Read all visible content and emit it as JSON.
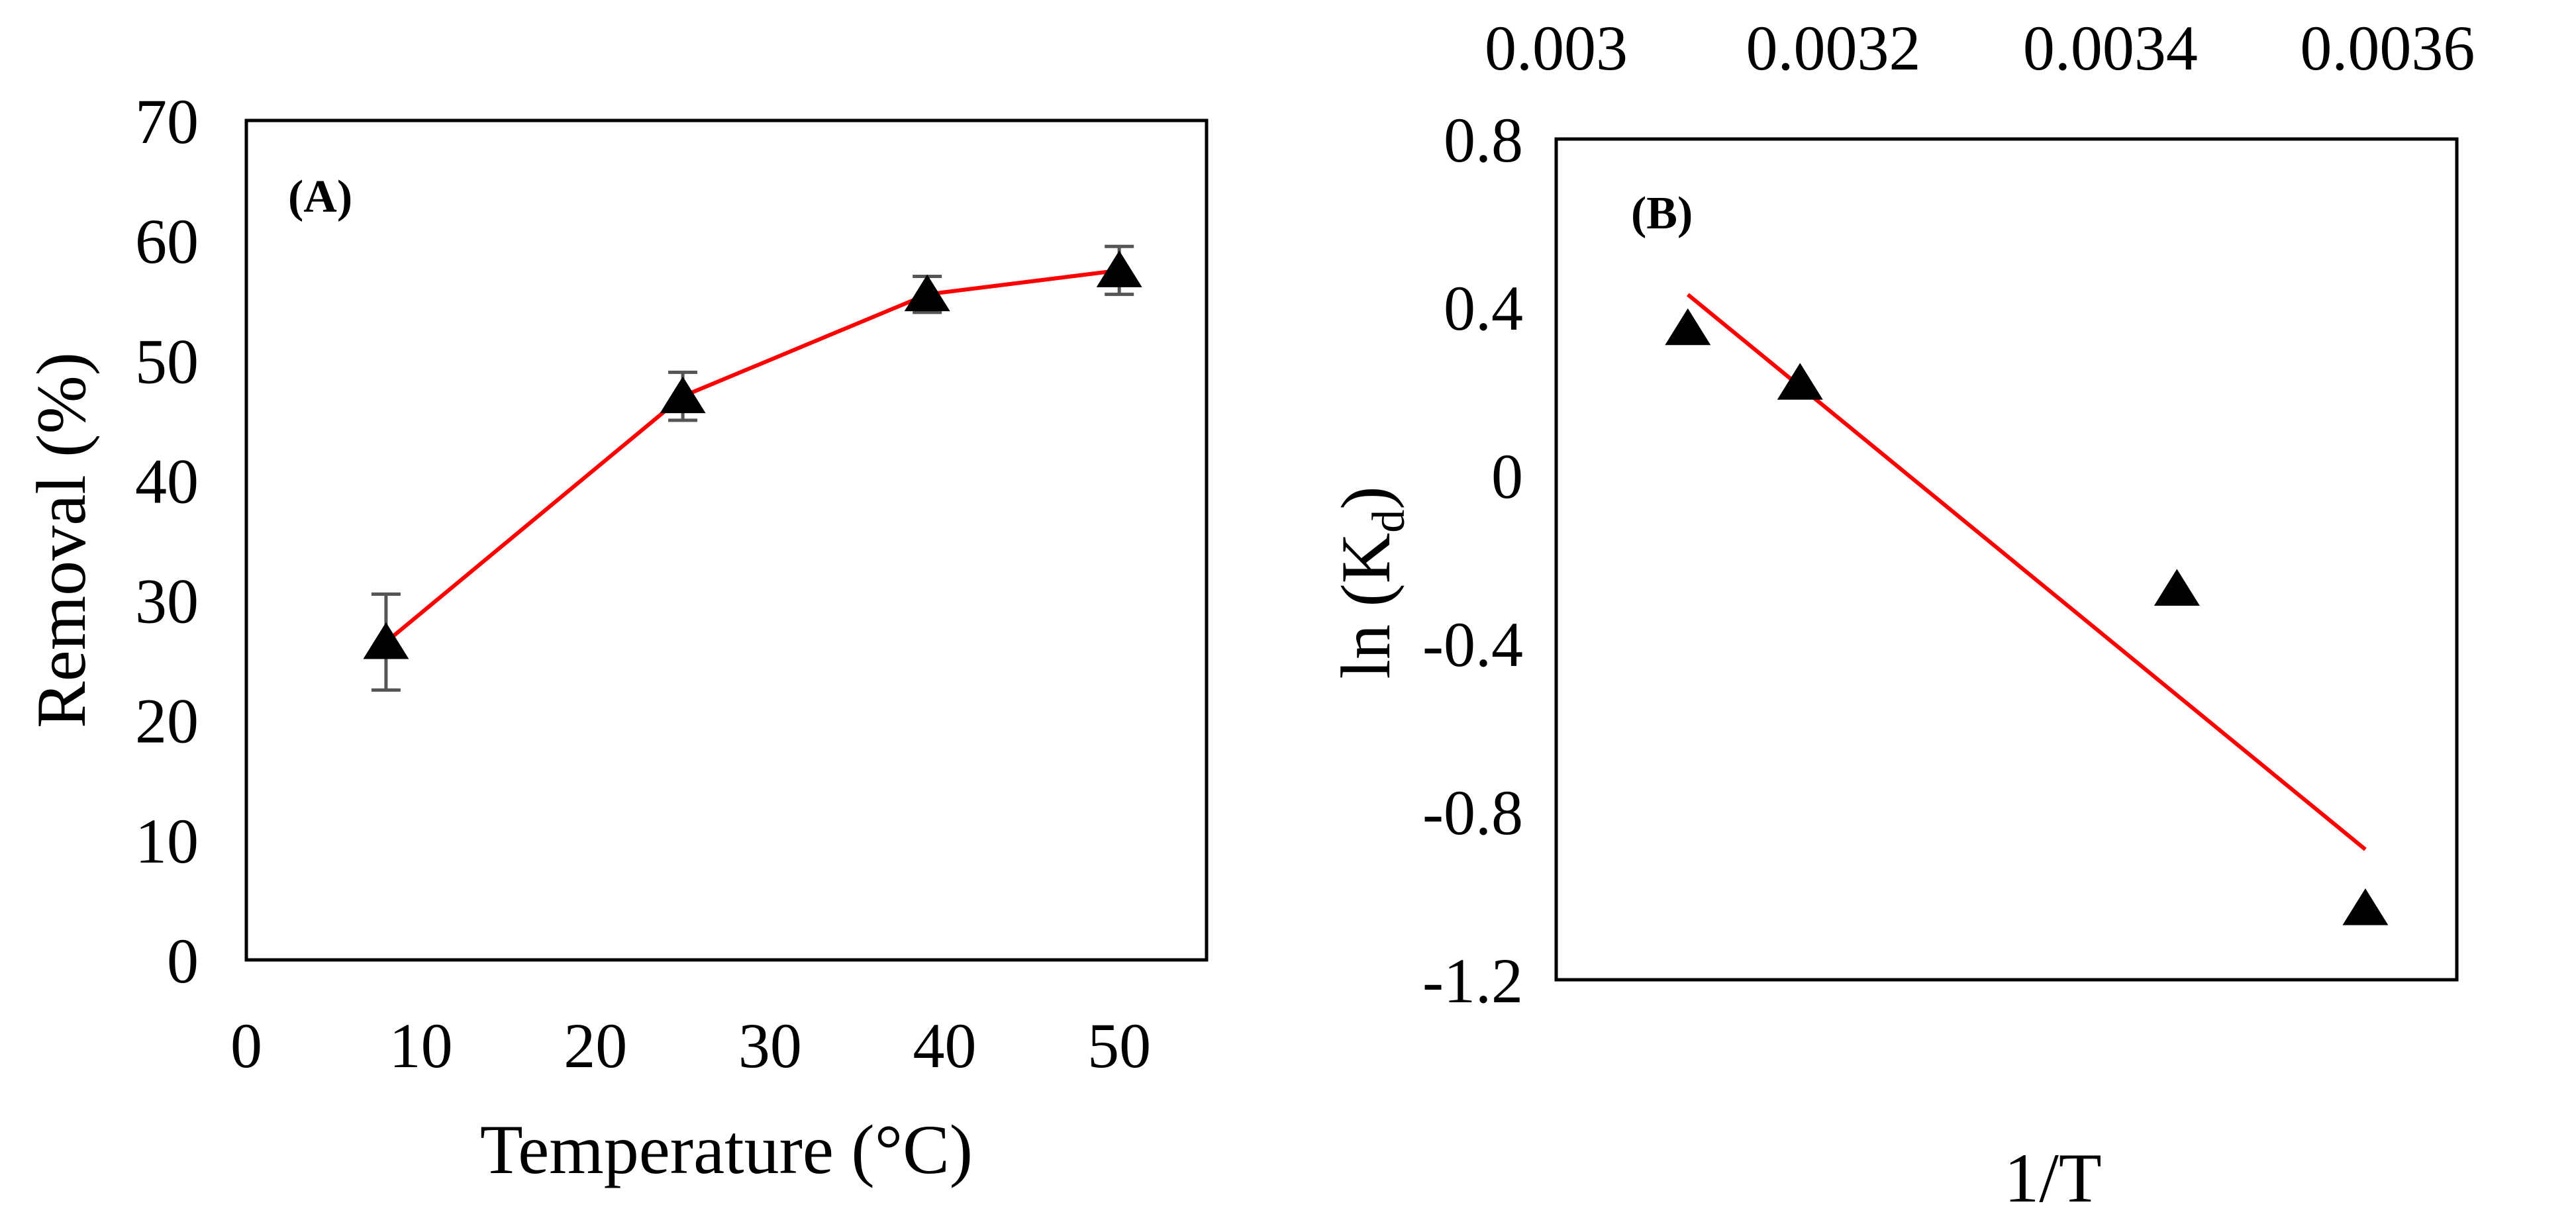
{
  "chart_data": [
    {
      "type": "line",
      "panel_label": "(A)",
      "title": "",
      "xlabel": "Temperature (°C)",
      "ylabel": "Removal (%)",
      "xlim": [
        0,
        55
      ],
      "ylim": [
        0,
        70
      ],
      "x_ticks": [
        0,
        10,
        20,
        30,
        40,
        50
      ],
      "y_ticks": [
        0,
        10,
        20,
        30,
        40,
        50,
        60,
        70
      ],
      "x_tick_labels": [
        "0",
        "10",
        "20",
        "30",
        "40",
        "50"
      ],
      "y_tick_labels": [
        "0",
        "10",
        "20",
        "30",
        "40",
        "50",
        "60",
        "70"
      ],
      "grid": false,
      "series": [
        {
          "name": "Removal",
          "x": [
            8,
            25,
            39,
            50
          ],
          "values": [
            26.5,
            47,
            55.5,
            57.5
          ],
          "error": [
            4,
            2,
            1.5,
            2
          ],
          "marker": "triangle",
          "marker_color": "#000000",
          "line_color": "#ff0000"
        }
      ]
    },
    {
      "type": "scatter",
      "panel_label": "(B)",
      "title": "",
      "xlabel": "1/T",
      "ylabel": "ln (K",
      "ylabel_subscript": "d",
      "ylabel_close": ")",
      "xlim": [
        0.003,
        0.00365
      ],
      "ylim": [
        -1.2,
        0.8
      ],
      "x_ticks": [
        0.003,
        0.0032,
        0.0034,
        0.0036
      ],
      "y_ticks": [
        0.8,
        0.4,
        0,
        -0.4,
        -0.8,
        -1.2
      ],
      "x_tick_labels": [
        "0.003",
        "0.0032",
        "0.0034",
        "0.0036"
      ],
      "y_tick_labels": [
        "0.8",
        "0.4",
        "0",
        "-0.4",
        "-0.8",
        "-1.2"
      ],
      "x_axis_position": "top",
      "grid": false,
      "series": [
        {
          "name": "ln(Kd)",
          "x": [
            0.003095,
            0.003176,
            0.003448,
            0.003584
          ],
          "values": [
            0.35,
            0.22,
            -0.27,
            -1.03
          ],
          "marker": "triangle",
          "marker_color": "#000000"
        }
      ],
      "trendline": {
        "x": [
          0.003095,
          0.003584
        ],
        "values": [
          0.43,
          -0.89
        ],
        "color": "#ff0000"
      }
    }
  ]
}
